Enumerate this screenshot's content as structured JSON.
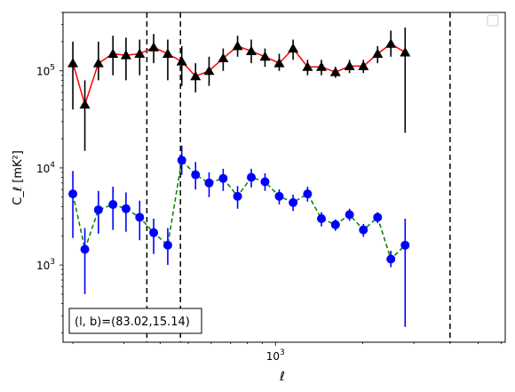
{
  "chart_data": {
    "type": "scatter",
    "xlabel": "ℓ",
    "ylabel": "C_ℓ  [mK²]",
    "xscale": "log",
    "yscale": "log",
    "xlim": [
      185,
      6200
    ],
    "ylim": [
      160,
      400000
    ],
    "x_tick_labels": [
      {
        "value": 1000,
        "base": "10",
        "exp": "3"
      }
    ],
    "y_tick_labels": [
      {
        "value": 1000,
        "base": "10",
        "exp": "3"
      },
      {
        "value": 10000,
        "base": "10",
        "exp": "4"
      },
      {
        "value": 100000,
        "base": "10",
        "exp": "5"
      }
    ],
    "annotation": "(l, b)=(83.02,15.14)",
    "legend": "top-right (empty)",
    "vlines": [
      360,
      470,
      4000
    ],
    "series": [
      {
        "marker": "triangle",
        "color": "#000000",
        "line_color": "#ff0000",
        "line_style": "solid",
        "points": [
          {
            "x": 200,
            "y": 120000,
            "lo": 40000,
            "hi": 200000
          },
          {
            "x": 220,
            "y": 45000,
            "lo": 15000,
            "hi": 80000
          },
          {
            "x": 245,
            "y": 120000,
            "lo": 80000,
            "hi": 200000
          },
          {
            "x": 275,
            "y": 150000,
            "lo": 90000,
            "hi": 230000
          },
          {
            "x": 305,
            "y": 145000,
            "lo": 80000,
            "hi": 220000
          },
          {
            "x": 340,
            "y": 150000,
            "lo": 90000,
            "hi": 210000
          },
          {
            "x": 380,
            "y": 175000,
            "lo": 120000,
            "hi": 240000
          },
          {
            "x": 425,
            "y": 150000,
            "lo": 80000,
            "hi": 210000
          },
          {
            "x": 475,
            "y": 125000,
            "lo": 70000,
            "hi": 180000
          },
          {
            "x": 530,
            "y": 88000,
            "lo": 60000,
            "hi": 120000
          },
          {
            "x": 590,
            "y": 100000,
            "lo": 70000,
            "hi": 140000
          },
          {
            "x": 660,
            "y": 135000,
            "lo": 100000,
            "hi": 170000
          },
          {
            "x": 740,
            "y": 180000,
            "lo": 140000,
            "hi": 230000
          },
          {
            "x": 825,
            "y": 160000,
            "lo": 120000,
            "hi": 210000
          },
          {
            "x": 920,
            "y": 140000,
            "lo": 110000,
            "hi": 170000
          },
          {
            "x": 1030,
            "y": 120000,
            "lo": 100000,
            "hi": 150000
          },
          {
            "x": 1150,
            "y": 170000,
            "lo": 130000,
            "hi": 210000
          },
          {
            "x": 1290,
            "y": 110000,
            "lo": 90000,
            "hi": 130000
          },
          {
            "x": 1440,
            "y": 110000,
            "lo": 90000,
            "hi": 130000
          },
          {
            "x": 1610,
            "y": 97000,
            "lo": 85000,
            "hi": 110000
          },
          {
            "x": 1800,
            "y": 112000,
            "lo": 95000,
            "hi": 130000
          },
          {
            "x": 2010,
            "y": 112000,
            "lo": 95000,
            "hi": 130000
          },
          {
            "x": 2250,
            "y": 150000,
            "lo": 120000,
            "hi": 180000
          },
          {
            "x": 2500,
            "y": 190000,
            "lo": 140000,
            "hi": 260000
          },
          {
            "x": 2800,
            "y": 155000,
            "lo": 23000,
            "hi": 280000
          }
        ]
      },
      {
        "marker": "circle",
        "color": "#0000ff",
        "line_color": "#008000",
        "line_style": "dashed",
        "points": [
          {
            "x": 200,
            "y": 5400,
            "lo": 1900,
            "hi": 9300
          },
          {
            "x": 220,
            "y": 1450,
            "lo": 500,
            "hi": 2400
          },
          {
            "x": 245,
            "y": 3700,
            "lo": 2100,
            "hi": 5800
          },
          {
            "x": 275,
            "y": 4200,
            "lo": 2300,
            "hi": 6400
          },
          {
            "x": 305,
            "y": 3800,
            "lo": 2200,
            "hi": 5600
          },
          {
            "x": 340,
            "y": 3100,
            "lo": 1800,
            "hi": 4600
          },
          {
            "x": 380,
            "y": 2150,
            "lo": 1300,
            "hi": 3000
          },
          {
            "x": 425,
            "y": 1600,
            "lo": 1000,
            "hi": 2400
          },
          {
            "x": 475,
            "y": 12000,
            "lo": 8500,
            "hi": 17000
          },
          {
            "x": 530,
            "y": 8500,
            "lo": 6000,
            "hi": 11500
          },
          {
            "x": 590,
            "y": 7000,
            "lo": 5000,
            "hi": 9000
          },
          {
            "x": 660,
            "y": 7800,
            "lo": 5800,
            "hi": 9800
          },
          {
            "x": 740,
            "y": 5100,
            "lo": 3800,
            "hi": 6500
          },
          {
            "x": 825,
            "y": 8000,
            "lo": 6300,
            "hi": 9800
          },
          {
            "x": 920,
            "y": 7200,
            "lo": 5800,
            "hi": 8800
          },
          {
            "x": 1030,
            "y": 5100,
            "lo": 4200,
            "hi": 6000
          },
          {
            "x": 1150,
            "y": 4400,
            "lo": 3600,
            "hi": 5300
          },
          {
            "x": 1290,
            "y": 5400,
            "lo": 4500,
            "hi": 6400
          },
          {
            "x": 1440,
            "y": 3000,
            "lo": 2500,
            "hi": 3500
          },
          {
            "x": 1610,
            "y": 2600,
            "lo": 2250,
            "hi": 2950
          },
          {
            "x": 1800,
            "y": 3300,
            "lo": 2850,
            "hi": 3800
          },
          {
            "x": 2010,
            "y": 2300,
            "lo": 1950,
            "hi": 2650
          },
          {
            "x": 2250,
            "y": 3100,
            "lo": 2700,
            "hi": 3500
          },
          {
            "x": 2500,
            "y": 1150,
            "lo": 950,
            "hi": 1400
          },
          {
            "x": 2800,
            "y": 1600,
            "lo": 230,
            "hi": 3000
          }
        ]
      }
    ]
  }
}
